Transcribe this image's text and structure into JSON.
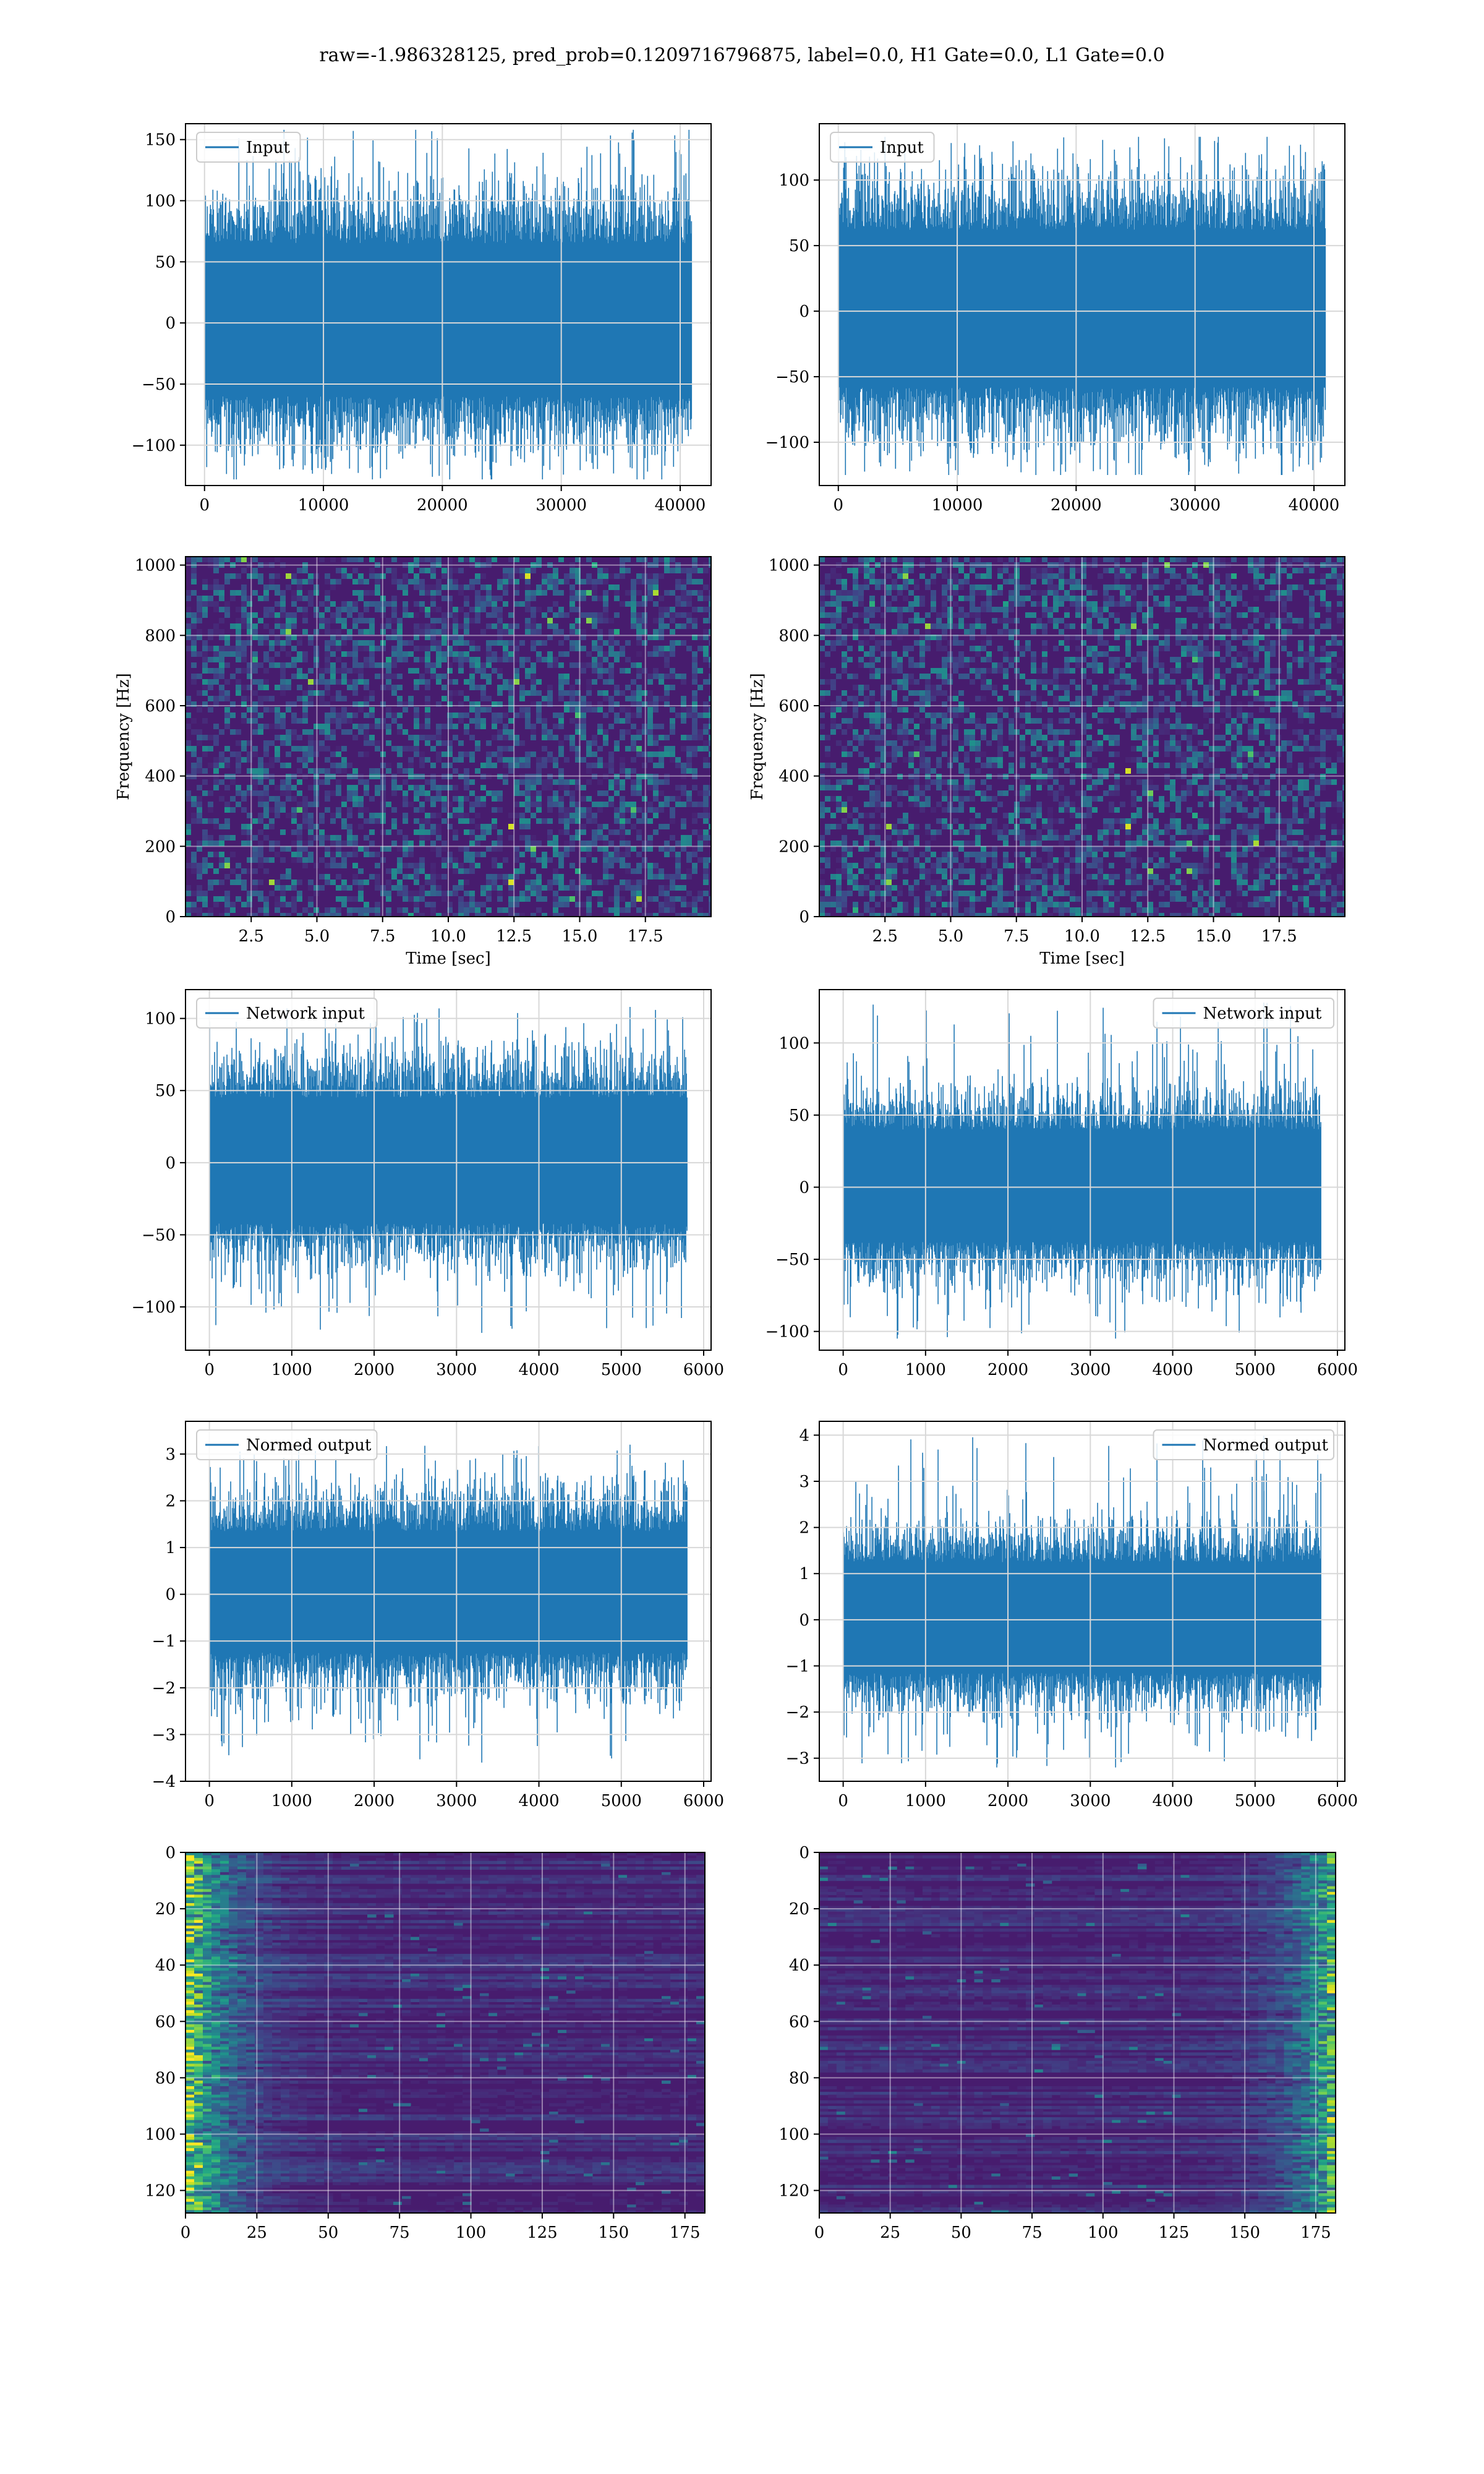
{
  "suptitle": "raw=-1.986328125, pred_prob=0.1209716796875, label=0.0, H1 Gate=0.0, L1 Gate=0.0",
  "colors": {
    "line": "#1f77b4",
    "grid": "#d8d8d8",
    "spine": "#000000"
  },
  "chart_data": [
    {
      "type": "line",
      "panel": "left-1",
      "legend": "Input",
      "legend_loc": "upper left",
      "xlim": [
        -1600,
        42600
      ],
      "ylim": [
        -133,
        163
      ],
      "xticks": [
        0,
        10000,
        20000,
        30000,
        40000
      ],
      "yticks": [
        -100,
        -50,
        0,
        50,
        100,
        150
      ],
      "xticklabels": [
        "0",
        "10000",
        "20000",
        "30000",
        "40000"
      ],
      "yticklabels": [
        "−100",
        "−50",
        "0",
        "50",
        "100",
        "150"
      ],
      "n_samples": 40960,
      "body_range": [
        -60,
        65
      ],
      "envelope": [
        -128,
        158
      ]
    },
    {
      "type": "line",
      "panel": "right-1",
      "legend": "Input",
      "legend_loc": "upper left",
      "xlim": [
        -1600,
        42600
      ],
      "ylim": [
        -133,
        143
      ],
      "xticks": [
        0,
        10000,
        20000,
        30000,
        40000
      ],
      "yticks": [
        -100,
        -50,
        0,
        50,
        100
      ],
      "xticklabels": [
        "0",
        "10000",
        "20000",
        "30000",
        "40000"
      ],
      "yticklabels": [
        "−100",
        "−50",
        "0",
        "50",
        "100"
      ],
      "n_samples": 40960,
      "body_range": [
        -58,
        62
      ],
      "envelope": [
        -125,
        133
      ]
    },
    {
      "type": "heatmap",
      "panel": "left-2",
      "xlabel": "Time [sec]",
      "ylabel": "Frequency [Hz]",
      "xlim": [
        0,
        20
      ],
      "ylim": [
        0,
        1024
      ],
      "xticks": [
        2.5,
        5.0,
        7.5,
        10.0,
        12.5,
        15.0,
        17.5
      ],
      "yticks": [
        0,
        200,
        400,
        600,
        800,
        1000
      ],
      "xticklabels": [
        "2.5",
        "5.0",
        "7.5",
        "10.0",
        "12.5",
        "15.0",
        "17.5"
      ],
      "yticklabels": [
        "0",
        "200",
        "400",
        "600",
        "800",
        "1000"
      ],
      "colormap": "viridis"
    },
    {
      "type": "heatmap",
      "panel": "right-2",
      "xlabel": "Time [sec]",
      "ylabel": "Frequency [Hz]",
      "xlim": [
        0,
        20
      ],
      "ylim": [
        0,
        1024
      ],
      "xticks": [
        2.5,
        5.0,
        7.5,
        10.0,
        12.5,
        15.0,
        17.5
      ],
      "yticks": [
        0,
        200,
        400,
        600,
        800,
        1000
      ],
      "xticklabels": [
        "2.5",
        "5.0",
        "7.5",
        "10.0",
        "12.5",
        "15.0",
        "17.5"
      ],
      "yticklabels": [
        "0",
        "200",
        "400",
        "600",
        "800",
        "1000"
      ],
      "colormap": "viridis"
    },
    {
      "type": "line",
      "panel": "left-3",
      "legend": "Network input",
      "legend_loc": "upper left",
      "xlim": [
        -290,
        6090
      ],
      "ylim": [
        -130,
        120
      ],
      "xticks": [
        0,
        1000,
        2000,
        3000,
        4000,
        5000,
        6000
      ],
      "yticks": [
        -100,
        -50,
        0,
        50,
        100
      ],
      "xticklabels": [
        "0",
        "1000",
        "2000",
        "3000",
        "4000",
        "5000",
        "6000"
      ],
      "yticklabels": [
        "−100",
        "−50",
        "0",
        "50",
        "100"
      ],
      "n_samples": 5800,
      "body_range": [
        -42,
        45
      ],
      "envelope": [
        -118,
        108
      ]
    },
    {
      "type": "line",
      "panel": "right-3",
      "legend": "Network input",
      "legend_loc": "upper right",
      "xlim": [
        -290,
        6090
      ],
      "ylim": [
        -113,
        137
      ],
      "xticks": [
        0,
        1000,
        2000,
        3000,
        4000,
        5000,
        6000
      ],
      "yticks": [
        -100,
        -50,
        0,
        50,
        100
      ],
      "xticklabels": [
        "0",
        "1000",
        "2000",
        "3000",
        "4000",
        "5000",
        "6000"
      ],
      "yticklabels": [
        "−100",
        "−50",
        "0",
        "50",
        "100"
      ],
      "n_samples": 5800,
      "body_range": [
        -38,
        40
      ],
      "envelope": [
        -105,
        128
      ]
    },
    {
      "type": "line",
      "panel": "left-4",
      "legend": "Normed output",
      "legend_loc": "upper left",
      "xlim": [
        -290,
        6090
      ],
      "ylim": [
        -4.0,
        3.7
      ],
      "xticks": [
        0,
        1000,
        2000,
        3000,
        4000,
        5000,
        6000
      ],
      "yticks": [
        -4,
        -3,
        -2,
        -1,
        0,
        1,
        2,
        3
      ],
      "xticklabels": [
        "0",
        "1000",
        "2000",
        "3000",
        "4000",
        "5000",
        "6000"
      ],
      "yticklabels": [
        "−4",
        "−3",
        "−2",
        "−1",
        "0",
        "1",
        "2",
        "3"
      ],
      "n_samples": 5800,
      "body_range": [
        -1.25,
        1.35
      ],
      "envelope": [
        -3.6,
        3.2
      ]
    },
    {
      "type": "line",
      "panel": "right-4",
      "legend": "Normed output",
      "legend_loc": "upper right",
      "xlim": [
        -290,
        6090
      ],
      "ylim": [
        -3.5,
        4.3
      ],
      "xticks": [
        0,
        1000,
        2000,
        3000,
        4000,
        5000,
        6000
      ],
      "yticks": [
        -3,
        -2,
        -1,
        0,
        1,
        2,
        3,
        4
      ],
      "xticklabels": [
        "0",
        "1000",
        "2000",
        "3000",
        "4000",
        "5000",
        "6000"
      ],
      "yticklabels": [
        "−3",
        "−2",
        "−1",
        "0",
        "1",
        "2",
        "3",
        "4"
      ],
      "n_samples": 5800,
      "body_range": [
        -1.15,
        1.25
      ],
      "envelope": [
        -3.2,
        4.0
      ]
    },
    {
      "type": "heatmap",
      "panel": "left-5",
      "xlim": [
        0,
        182
      ],
      "ylim": [
        128,
        0
      ],
      "xticks": [
        0,
        25,
        50,
        75,
        100,
        125,
        150,
        175
      ],
      "yticks": [
        0,
        20,
        40,
        60,
        80,
        100,
        120
      ],
      "xticklabels": [
        "0",
        "25",
        "50",
        "75",
        "100",
        "125",
        "150",
        "175"
      ],
      "yticklabels": [
        "0",
        "20",
        "40",
        "60",
        "80",
        "100",
        "120"
      ],
      "colormap": "viridis",
      "bright_side": "left"
    },
    {
      "type": "heatmap",
      "panel": "right-5",
      "xlim": [
        0,
        182
      ],
      "ylim": [
        128,
        0
      ],
      "xticks": [
        0,
        25,
        50,
        75,
        100,
        125,
        150,
        175
      ],
      "yticks": [
        0,
        20,
        40,
        60,
        80,
        100,
        120
      ],
      "xticklabels": [
        "0",
        "25",
        "50",
        "75",
        "100",
        "125",
        "150",
        "175"
      ],
      "yticklabels": [
        "0",
        "20",
        "40",
        "60",
        "80",
        "100",
        "120"
      ],
      "colormap": "viridis",
      "bright_side": "right"
    }
  ]
}
